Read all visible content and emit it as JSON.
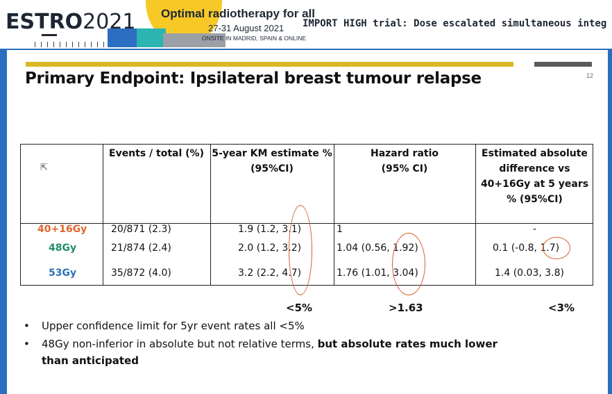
{
  "banner": {
    "logo_word": "ESTRO",
    "logo_year": "2021",
    "conference_title": "Optimal radiotherapy for all",
    "conference_dates": "27-31 August 2021",
    "conference_venue": "ONSITE IN MADRID, SPAIN & ONLINE",
    "talk_title": "IMPORT HIGH trial: Dose escalated simultaneous integ"
  },
  "slide": {
    "number": "12",
    "title": "Primary Endpoint: Ipsilateral breast tumour relapse",
    "table": {
      "headers": [
        "",
        "Events / total (%)",
        "5-year KM estimate %\n(95%CI)",
        "Hazard ratio\n(95% CI)",
        "Estimated absolute\ndifference vs\n40+16Gy at 5 years\n% (95%CI)"
      ],
      "rows": [
        {
          "group": "40+16Gy",
          "events": "20/871 (2.3)",
          "km_estimate": "1.9 (1.2, 3.1)",
          "hazard_ratio": "1",
          "abs_difference": "-"
        },
        {
          "group": "48Gy",
          "events": "21/874 (2.4)",
          "km_estimate": "2.0 (1.2, 3.2)",
          "hazard_ratio": "1.04 (0.56, 1.92)",
          "abs_difference": "0.1 (-0.8, 1.7)"
        },
        {
          "group": "53Gy",
          "events": "35/872 (4.0)",
          "km_estimate": "3.2 (2.2, 4.7)",
          "hazard_ratio": "1.76 (1.01, 3.04)",
          "abs_difference": "1.4 (0.03, 3.8)"
        }
      ],
      "group_colors": {
        "40+16Gy": "#e1652b",
        "48Gy": "#1f8f6a",
        "53Gy": "#2c73b8"
      }
    },
    "thresholds": {
      "km": "<5%",
      "hr": ">1.63",
      "abs": "<3%"
    },
    "bullets": [
      {
        "text": "Upper confidence limit for 5yr event rates all <5%"
      },
      {
        "text_plain": "48Gy non-inferior in absolute but not relative terms, ",
        "text_bold": "but absolute rates much lower",
        "text_bold_cont": "than anticipated"
      }
    ]
  }
}
